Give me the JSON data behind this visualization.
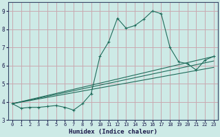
{
  "xlabel": "Humidex (Indice chaleur)",
  "xlim": [
    -0.5,
    23.5
  ],
  "ylim": [
    3.0,
    9.5
  ],
  "yticks": [
    3,
    4,
    5,
    6,
    7,
    8,
    9
  ],
  "xticks": [
    0,
    1,
    2,
    3,
    4,
    5,
    6,
    7,
    8,
    9,
    10,
    11,
    12,
    13,
    14,
    15,
    16,
    17,
    18,
    19,
    20,
    21,
    22,
    23
  ],
  "bg_color": "#cdeae6",
  "grid_color": "#c8a8b0",
  "line_color": "#1e6b5a",
  "line1_x": [
    0,
    1,
    2,
    3,
    4,
    5,
    6,
    7,
    8,
    9,
    10,
    11,
    12,
    13,
    14,
    15,
    16,
    17,
    18,
    19,
    20,
    21,
    22,
    23
  ],
  "line1_y": [
    3.9,
    3.65,
    3.7,
    3.7,
    3.75,
    3.8,
    3.7,
    3.55,
    3.9,
    4.45,
    6.5,
    7.3,
    8.6,
    8.05,
    8.2,
    8.55,
    9.0,
    8.85,
    7.0,
    6.2,
    6.1,
    5.75,
    6.3,
    6.5
  ],
  "line2_y_end": 6.5,
  "line3_y_end": 6.25,
  "line4_y_end": 5.9,
  "line_start_y": 3.9,
  "line_start_x": 0,
  "line_end_x": 23
}
